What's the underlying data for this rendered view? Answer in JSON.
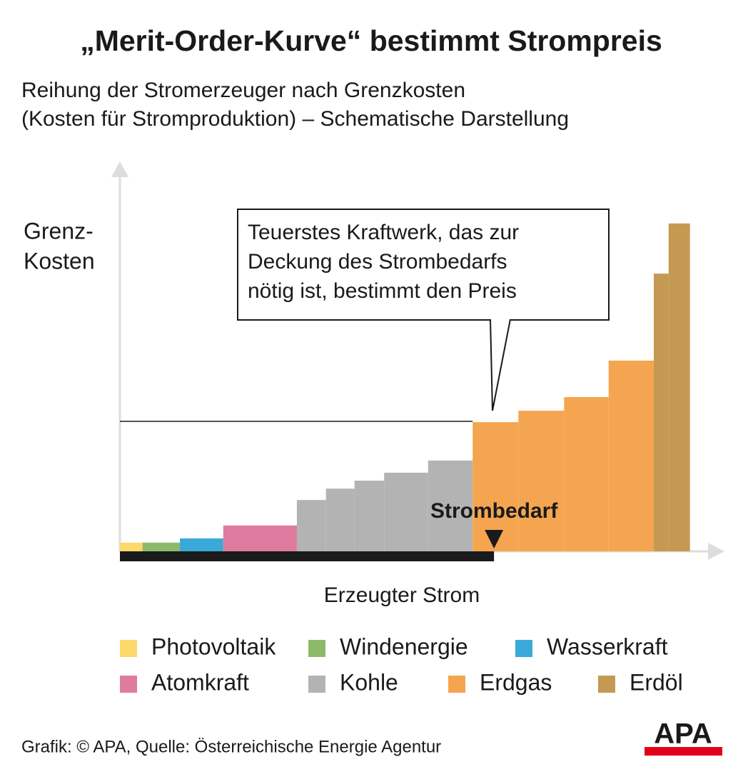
{
  "chart_data": {
    "type": "merit-order",
    "title": "„Merit-Order-Kurve“ bestimmt Strompreis",
    "subtitle": [
      "Reihung der Stromerzeuger nach Grenzkosten",
      "(Kosten für Stromproduktion) – Schematische Darstellung"
    ],
    "y_label": [
      "Grenz-",
      "Kosten"
    ],
    "x_label": "Erzeugter Strom",
    "xlim": [
      0,
      100
    ],
    "ylim": [
      0,
      100
    ],
    "series": [
      {
        "name": "Photovoltaik",
        "color": "#fcd96a",
        "x_start": [
          0
        ],
        "x_end": [
          3.8
        ],
        "values": [
          2.3
        ]
      },
      {
        "name": "Windenergie",
        "color": "#8dba6a",
        "x_start": [
          3.8
        ],
        "x_end": [
          10.1
        ],
        "values": [
          2.3
        ]
      },
      {
        "name": "Wasserkraft",
        "color": "#3aa8d8",
        "x_start": [
          10.1
        ],
        "x_end": [
          17.4
        ],
        "values": [
          3.4
        ]
      },
      {
        "name": "Atomkraft",
        "color": "#de7b9f",
        "x_start": [
          17.4
        ],
        "x_end": [
          29.8
        ],
        "values": [
          6.8
        ]
      },
      {
        "name": "Kohle",
        "color": "#b3b3b3",
        "x_start": [
          29.8,
          34.7,
          39.5,
          44.5,
          51.9
        ],
        "x_end": [
          34.7,
          39.5,
          44.5,
          51.9,
          59.4
        ],
        "values": [
          13.5,
          16.5,
          18.6,
          20.7,
          23.9
        ]
      },
      {
        "name": "Erdgas",
        "color": "#f5a550",
        "x_start": [
          59.4,
          67.1,
          74.8,
          82.3
        ],
        "x_end": [
          67.1,
          74.8,
          82.3,
          89.9
        ],
        "values": [
          34.0,
          37.0,
          40.6,
          50.2
        ]
      },
      {
        "name": "Erdöl",
        "color": "#c49a52",
        "x_start": [
          89.9,
          92.4
        ],
        "x_end": [
          92.4,
          96.0
        ],
        "values": [
          73.1,
          86.3
        ]
      }
    ],
    "demand_x": 63.0,
    "price": 34.2,
    "demand_label": "Strombedarf",
    "callout": [
      "Teuerstes Kraftwerk, das zur",
      "Deckung des Strombedarfs",
      "nötig ist, bestimmt den Preis"
    ],
    "source": "Grafik: © APA, Quelle: Österreichische Energie Agentur",
    "logo": "APA"
  }
}
